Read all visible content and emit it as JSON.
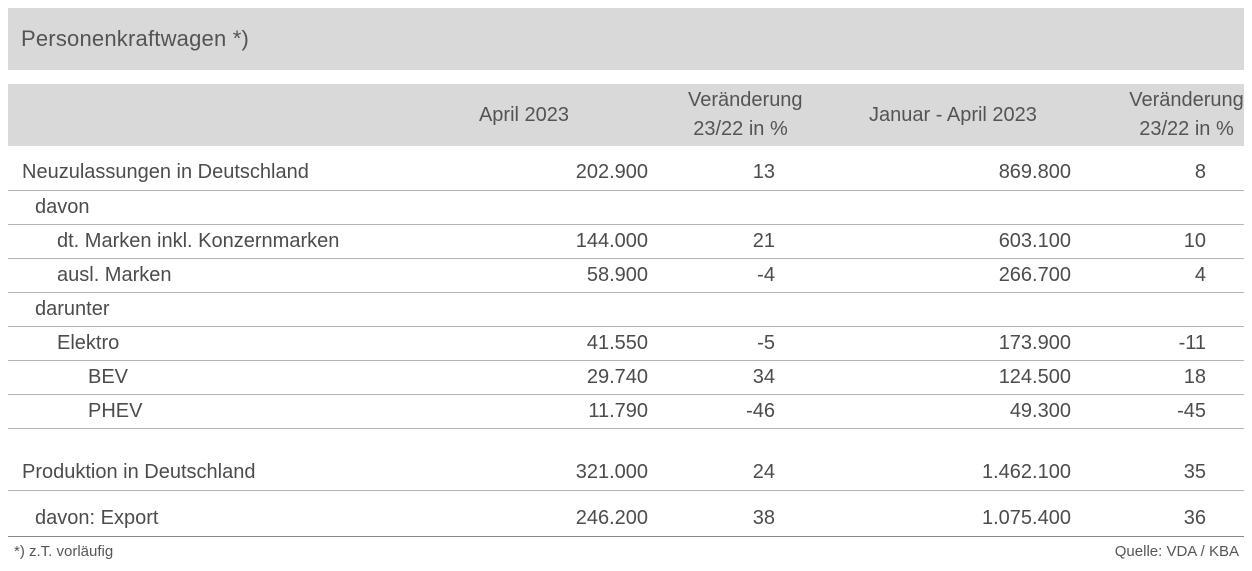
{
  "title": "Personenkraftwagen *)",
  "table": {
    "headers": {
      "period_current": "April 2023",
      "change_current_line1": "Veränderung",
      "change_current_line2": "23/22 in %",
      "period_ytd": "Januar - April 2023",
      "change_ytd_line1": "Veränderung",
      "change_ytd_line2": "23/22 in %"
    },
    "rows": [
      {
        "label": "Neuzulassungen in Deutschland",
        "values": [
          "202.900",
          "13",
          "869.800",
          "8"
        ]
      },
      {
        "label": "davon",
        "values": [
          "",
          "",
          "",
          ""
        ]
      },
      {
        "label": "dt. Marken inkl. Konzernmarken",
        "values": [
          "144.000",
          "21",
          "603.100",
          "10"
        ]
      },
      {
        "label": "ausl. Marken",
        "values": [
          "58.900",
          "-4",
          "266.700",
          "4"
        ]
      },
      {
        "label": "darunter",
        "values": [
          "",
          "",
          "",
          ""
        ]
      },
      {
        "label": "Elektro",
        "values": [
          "41.550",
          "-5",
          "173.900",
          "-11"
        ]
      },
      {
        "label": "BEV",
        "values": [
          "29.740",
          "34",
          "124.500",
          "18"
        ]
      },
      {
        "label": "PHEV",
        "values": [
          "11.790",
          "-46",
          "49.300",
          "-45"
        ]
      },
      {
        "label": "Produktion in Deutschland",
        "values": [
          "321.000",
          "24",
          "1.462.100",
          "35"
        ]
      },
      {
        "label": "davon: Export",
        "values": [
          "246.200",
          "38",
          "1.075.400",
          "36"
        ]
      }
    ]
  },
  "footer": {
    "footnote": "*) z.T. vorläufig",
    "source": "Quelle: VDA / KBA"
  },
  "colors": {
    "bar_background": "#d9d9d9",
    "text": "#4c4c4c",
    "row_border": "#b5b5b5",
    "closing_border": "#8a8a8a"
  }
}
